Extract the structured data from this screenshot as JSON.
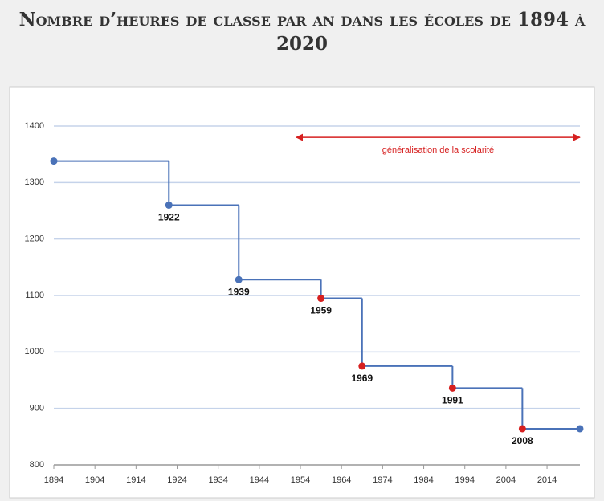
{
  "chart_data": {
    "type": "step",
    "title": "Nombre d’heures de classe par an dans les écoles de 1894 à 2020",
    "x": [
      1894,
      1922,
      1939,
      1959,
      1969,
      1991,
      2008,
      2022
    ],
    "series": [
      {
        "color": "#4a72b8",
        "values": [
          1338,
          1260,
          1128,
          1095,
          975,
          936,
          864,
          864
        ],
        "point_colors": [
          "#4a72b8",
          "#4a72b8",
          "#4a72b8",
          "#d62020",
          "#d62020",
          "#d62020",
          "#d62020",
          "#4a72b8"
        ],
        "point_labels": [
          null,
          1922,
          1939,
          1959,
          1969,
          1991,
          2008,
          null
        ]
      }
    ],
    "xlim": [
      1894,
      2022
    ],
    "xticks": [
      1894,
      1904,
      1914,
      1924,
      1934,
      1944,
      1954,
      1964,
      1974,
      1984,
      1994,
      2004,
      2014
    ],
    "ylim": [
      800,
      1400
    ],
    "yticks": [
      800,
      900,
      1000,
      1100,
      1200,
      1300,
      1400
    ],
    "grid": true,
    "annotation": {
      "text": "généralisation de la scolarité",
      "x_start": 1953,
      "x_end": 2022,
      "y": 1380,
      "color": "#d62020"
    }
  }
}
